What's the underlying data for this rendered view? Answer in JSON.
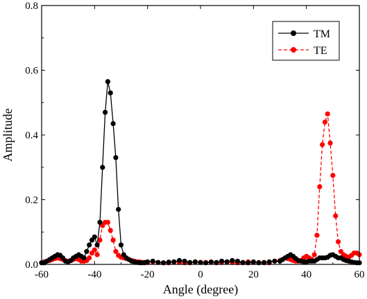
{
  "chart_data": {
    "type": "line",
    "title": "",
    "xlabel": "Angle (degree)",
    "ylabel": "Amplitude",
    "xlim": [
      -60,
      60
    ],
    "ylim": [
      0,
      0.8
    ],
    "xticks": [
      -60,
      -40,
      -20,
      0,
      20,
      40,
      60
    ],
    "yticks": [
      0.0,
      0.2,
      0.4,
      0.6,
      0.8
    ],
    "xtick_labels": [
      "-60",
      "-40",
      "-20",
      "0",
      "20",
      "40",
      "60"
    ],
    "ytick_labels": [
      "0.0",
      "0.2",
      "0.4",
      "0.6",
      "0.8"
    ],
    "legend_position": "top-right",
    "grid": false,
    "series": [
      {
        "name": "TM",
        "color": "#000000",
        "line_style": "solid",
        "marker": "circle",
        "x": [
          -60,
          -59,
          -58,
          -57,
          -56,
          -55,
          -54,
          -53,
          -52,
          -51,
          -50,
          -49,
          -48,
          -47,
          -46,
          -45,
          -44,
          -43,
          -42,
          -41,
          -40,
          -39,
          -38,
          -37,
          -36,
          -35,
          -34,
          -33,
          -32,
          -31,
          -30,
          -29,
          -28,
          -27,
          -26,
          -25,
          -24,
          -23,
          -22,
          -21,
          -20,
          -18,
          -16,
          -14,
          -12,
          -10,
          -8,
          -6,
          -4,
          -2,
          0,
          2,
          4,
          6,
          8,
          10,
          12,
          14,
          16,
          18,
          20,
          22,
          24,
          26,
          28,
          30,
          31,
          32,
          33,
          34,
          35,
          36,
          37,
          38,
          39,
          40,
          41,
          42,
          43,
          44,
          45,
          46,
          47,
          48,
          49,
          50,
          51,
          52,
          53,
          54,
          55,
          56,
          57,
          58,
          59,
          60
        ],
        "y": [
          0.005,
          0.005,
          0.01,
          0.015,
          0.02,
          0.025,
          0.03,
          0.028,
          0.02,
          0.01,
          0.008,
          0.012,
          0.02,
          0.025,
          0.03,
          0.025,
          0.02,
          0.04,
          0.06,
          0.075,
          0.085,
          0.06,
          0.13,
          0.3,
          0.47,
          0.565,
          0.53,
          0.435,
          0.33,
          0.17,
          0.06,
          0.03,
          0.02,
          0.015,
          0.01,
          0.008,
          0.006,
          0.005,
          0.005,
          0.006,
          0.008,
          0.01,
          0.006,
          0.005,
          0.007,
          0.008,
          0.012,
          0.01,
          0.006,
          0.008,
          0.006,
          0.005,
          0.007,
          0.006,
          0.01,
          0.008,
          0.012,
          0.01,
          0.006,
          0.005,
          0.008,
          0.005,
          0.006,
          0.008,
          0.01,
          0.01,
          0.015,
          0.02,
          0.025,
          0.03,
          0.025,
          0.018,
          0.012,
          0.01,
          0.008,
          0.008,
          0.01,
          0.01,
          0.01,
          0.015,
          0.02,
          0.02,
          0.02,
          0.022,
          0.028,
          0.03,
          0.025,
          0.02,
          0.02,
          0.015,
          0.012,
          0.01,
          0.008,
          0.006,
          0.005,
          0.005
        ]
      },
      {
        "name": "TE",
        "color": "#ff0000",
        "line_style": "dashed",
        "marker": "circle",
        "x": [
          -60,
          -59,
          -58,
          -57,
          -56,
          -55,
          -54,
          -53,
          -52,
          -51,
          -50,
          -49,
          -48,
          -47,
          -46,
          -45,
          -44,
          -43,
          -42,
          -41,
          -40,
          -39,
          -38,
          -37,
          -36,
          -35,
          -34,
          -33,
          -32,
          -31,
          -30,
          -29,
          -28,
          -27,
          -26,
          -25,
          -24,
          -23,
          -22,
          -21,
          -20,
          -18,
          -16,
          -14,
          -12,
          -10,
          -8,
          -6,
          -4,
          -2,
          0,
          2,
          4,
          6,
          8,
          10,
          12,
          14,
          16,
          18,
          20,
          22,
          24,
          26,
          28,
          30,
          31,
          32,
          33,
          34,
          35,
          36,
          37,
          38,
          39,
          40,
          41,
          42,
          43,
          44,
          45,
          46,
          47,
          48,
          49,
          50,
          51,
          52,
          53,
          54,
          55,
          56,
          57,
          58,
          59,
          60
        ],
        "y": [
          0.005,
          0.008,
          0.01,
          0.012,
          0.015,
          0.018,
          0.02,
          0.018,
          0.015,
          0.012,
          0.01,
          0.012,
          0.015,
          0.018,
          0.015,
          0.01,
          0.01,
          0.012,
          0.02,
          0.035,
          0.045,
          0.03,
          0.075,
          0.12,
          0.13,
          0.13,
          0.105,
          0.075,
          0.04,
          0.028,
          0.022,
          0.02,
          0.018,
          0.015,
          0.012,
          0.01,
          0.008,
          0.008,
          0.006,
          0.005,
          0.006,
          0.008,
          0.006,
          0.005,
          0.005,
          0.008,
          0.006,
          0.005,
          0.005,
          0.008,
          0.006,
          0.006,
          0.008,
          0.005,
          0.006,
          0.008,
          0.006,
          0.005,
          0.005,
          0.008,
          0.006,
          0.006,
          0.005,
          0.005,
          0.01,
          0.012,
          0.015,
          0.02,
          0.018,
          0.015,
          0.012,
          0.01,
          0.01,
          0.012,
          0.02,
          0.025,
          0.02,
          0.015,
          0.03,
          0.09,
          0.24,
          0.37,
          0.44,
          0.465,
          0.375,
          0.275,
          0.15,
          0.07,
          0.04,
          0.03,
          0.025,
          0.022,
          0.028,
          0.035,
          0.035,
          0.03
        ]
      }
    ]
  }
}
